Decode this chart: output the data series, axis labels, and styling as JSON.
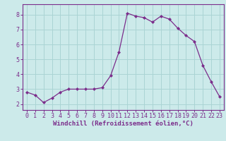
{
  "x": [
    0,
    1,
    2,
    3,
    4,
    5,
    6,
    7,
    8,
    9,
    10,
    11,
    12,
    13,
    14,
    15,
    16,
    17,
    18,
    19,
    20,
    21,
    22,
    23
  ],
  "y": [
    2.8,
    2.6,
    2.1,
    2.4,
    2.8,
    3.0,
    3.0,
    3.0,
    3.0,
    3.1,
    3.9,
    5.5,
    8.1,
    7.9,
    7.8,
    7.5,
    7.9,
    7.7,
    7.1,
    6.6,
    6.2,
    4.6,
    3.5,
    2.5
  ],
  "line_color": "#7b2d8b",
  "marker": "D",
  "marker_size": 2.0,
  "line_width": 0.9,
  "bg_color": "#cceaea",
  "grid_color": "#aad4d4",
  "xlabel": "Windchill (Refroidissement éolien,°C)",
  "xlabel_fontsize": 6.5,
  "xtick_labels": [
    "0",
    "1",
    "2",
    "3",
    "4",
    "5",
    "6",
    "7",
    "8",
    "9",
    "10",
    "11",
    "12",
    "13",
    "14",
    "15",
    "16",
    "17",
    "18",
    "19",
    "20",
    "21",
    "22",
    "23"
  ],
  "ytick_values": [
    2,
    3,
    4,
    5,
    6,
    7,
    8
  ],
  "ylim": [
    1.6,
    8.7
  ],
  "xlim": [
    -0.5,
    23.5
  ],
  "tick_fontsize": 6.0,
  "axis_color": "#7b2d8b"
}
